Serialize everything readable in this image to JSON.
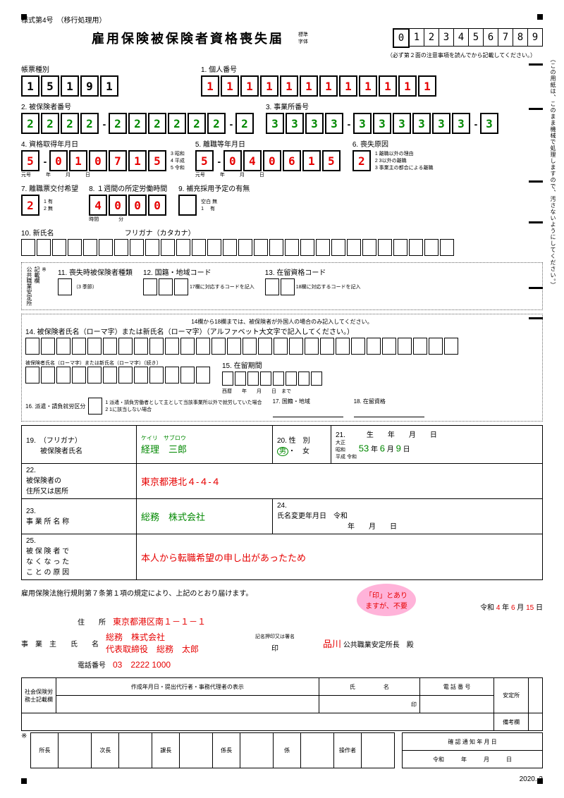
{
  "form_label": "様式第4号　（移行処理用）",
  "title": "雇用保険被保険者資格喪失届",
  "sample_label": "標準\n字体",
  "sample_digits": [
    "0",
    "1",
    "2",
    "3",
    "4",
    "5",
    "6",
    "7",
    "8",
    "9"
  ],
  "sample_note": "（必ず第２面の注意事項を読んでから記載してください。）",
  "vert_note": "（この用紙は、このまま機械で処理しますので、汚さないようにしてください。）",
  "f1": {
    "label": "帳票種別",
    "vals": [
      "1",
      "5",
      "1",
      "9",
      "1"
    ]
  },
  "f2": {
    "label": "1. 個人番号",
    "vals": [
      "1",
      "1",
      "1",
      "1",
      "1",
      "1",
      "1",
      "1",
      "1",
      "1",
      "1",
      "1"
    ]
  },
  "f3": {
    "label": "2. 被保険者番号",
    "vals": [
      "2",
      "2",
      "2",
      "2",
      "-",
      "2",
      "2",
      "2",
      "2",
      "2",
      "2",
      "-",
      "2"
    ]
  },
  "f4": {
    "label": "3. 事業所番号",
    "vals": [
      "3",
      "3",
      "3",
      "3",
      "-",
      "3",
      "3",
      "3",
      "3",
      "3",
      "3",
      "-",
      "3"
    ]
  },
  "f5": {
    "label": "4. 資格取得年月日",
    "vals": [
      "5",
      "-",
      "0",
      "1",
      "0",
      "7",
      "1",
      "5"
    ],
    "sub": "元号　　　年　　　月　　　日",
    "opts": "3 昭和\n4 平成\n5 令和"
  },
  "f6": {
    "label": "5. 離職等年月日",
    "vals": [
      "5",
      "-",
      "0",
      "4",
      "0",
      "6",
      "1",
      "5"
    ],
    "sub": "元号　　　年　　　月　　　日"
  },
  "f7": {
    "label": "6. 喪失原因",
    "vals": [
      "2"
    ],
    "opts": "1 離職以外の理由\n2 3以外の離職\n3 事業主の都合による離職"
  },
  "f8": {
    "label": "7. 離職票交付希望",
    "vals": [
      "2"
    ],
    "opts": "1 有\n2 無"
  },
  "f9": {
    "label": "8. １週間の所定労働時間",
    "vals": [
      "4",
      "0",
      "0",
      "0"
    ],
    "sub": "時間　　　　分"
  },
  "f10": {
    "label": "9. 補充採用予定の有無",
    "opts": "空白 無\n1　 有"
  },
  "f11": {
    "label": "10. 新氏名",
    "note": "フリガナ（カタカナ）"
  },
  "note_box_label": "※\n記載欄\n公共職業安定所",
  "f12": {
    "label": "11. 喪失時被保険者種類",
    "opts": "（3 季節）"
  },
  "f13": {
    "label": "12. 国籍・地域コード",
    "opts": "17欄に対応するコードを記入"
  },
  "f14": {
    "label": "13. 在留資格コード",
    "opts": "18欄に対応するコードを記入"
  },
  "foreign_note": "14欄から18欄までは、被保険者が外国人の場合のみ記入してください。",
  "f15": {
    "label": "14. 被保険者氏名（ローマ字）または新氏名（ローマ字）（アルファベット大文字で記入してください。）"
  },
  "f15b": {
    "label": "被保険者氏名（ローマ字）または新氏名（ローマ字）〔続き〕"
  },
  "f16": {
    "label": "15. 在留期間",
    "sub": "西暦　　年　　月　　日　まで"
  },
  "f17": {
    "label": "16. 派遣・請負就労区分",
    "opts": "1 派遣・請負労働者として主として当該事業所以外で就労していた場合\n2 1に該当しない場合"
  },
  "f18": {
    "label": "17. 国籍・地域"
  },
  "f19": {
    "label": "18. 在留資格"
  },
  "t19": {
    "label": "19.　（フリガナ）",
    "sublabel": "被保険者氏名",
    "furigana": "ケイリ　サブロウ",
    "name": "経理　三郎"
  },
  "t20": {
    "label": "20. 性　別",
    "val": "男",
    "opt": "・　女"
  },
  "t21": {
    "label": "21.　　　生　　年　　月　　日",
    "era_opts": "大正\n昭和\n平成  令和",
    "era": "昭和",
    "y": "53",
    "m": "6",
    "d": "9"
  },
  "t22": {
    "label": "22.\n被保険者の\n住所又は居所",
    "val": "東京都港北４-４-４"
  },
  "t23": {
    "label": "23.\n事 業 所 名 称",
    "val": "総務　株式会社"
  },
  "t24": {
    "label": "24.\n氏名変更年月日",
    "era": "令和",
    "suffix": "年　　月　　日"
  },
  "t25": {
    "label": "25.\n被 保 険 者 で\nな く な っ た\nこ と の 原 因",
    "val": "本人から転職希望の申し出があったため"
  },
  "decl": "雇用保険法施行規則第７条第１項の規定により、上記のとおり届けます。",
  "bubble": "「印」とあり\nますが、不要",
  "date": {
    "era": "令和",
    "y": "4",
    "m": "6",
    "d": "15"
  },
  "addr_label": "住　　所",
  "addr": "東京都港区南１－１－１",
  "owner_label": "事　業　主　　氏　　名",
  "company": "総務　株式会社",
  "rep": "代表取締役　総務　太郎",
  "tel_label": "電話番号",
  "tel": "03　2222 1000",
  "stamp_label": "記名押印又は署名",
  "stamp": "印",
  "office": "品川",
  "office_suffix": "公共職業安定所長　殿",
  "admin": {
    "h1": "社会保険労務士記載欄",
    "h2": "作成年月日・提出代行者・事務代理者の表示",
    "h3": "氏　　　　　名",
    "h4": "電 話 番 号",
    "h5": "安定所",
    "h6": "備考欄",
    "r": [
      "所長",
      "次長",
      "課長",
      "係長",
      "係",
      "操作者"
    ],
    "conf": "確 認 通 知 年 月 日",
    "conf2": "令和　　　年　　　月　　　日"
  },
  "footer": "2020. 3"
}
